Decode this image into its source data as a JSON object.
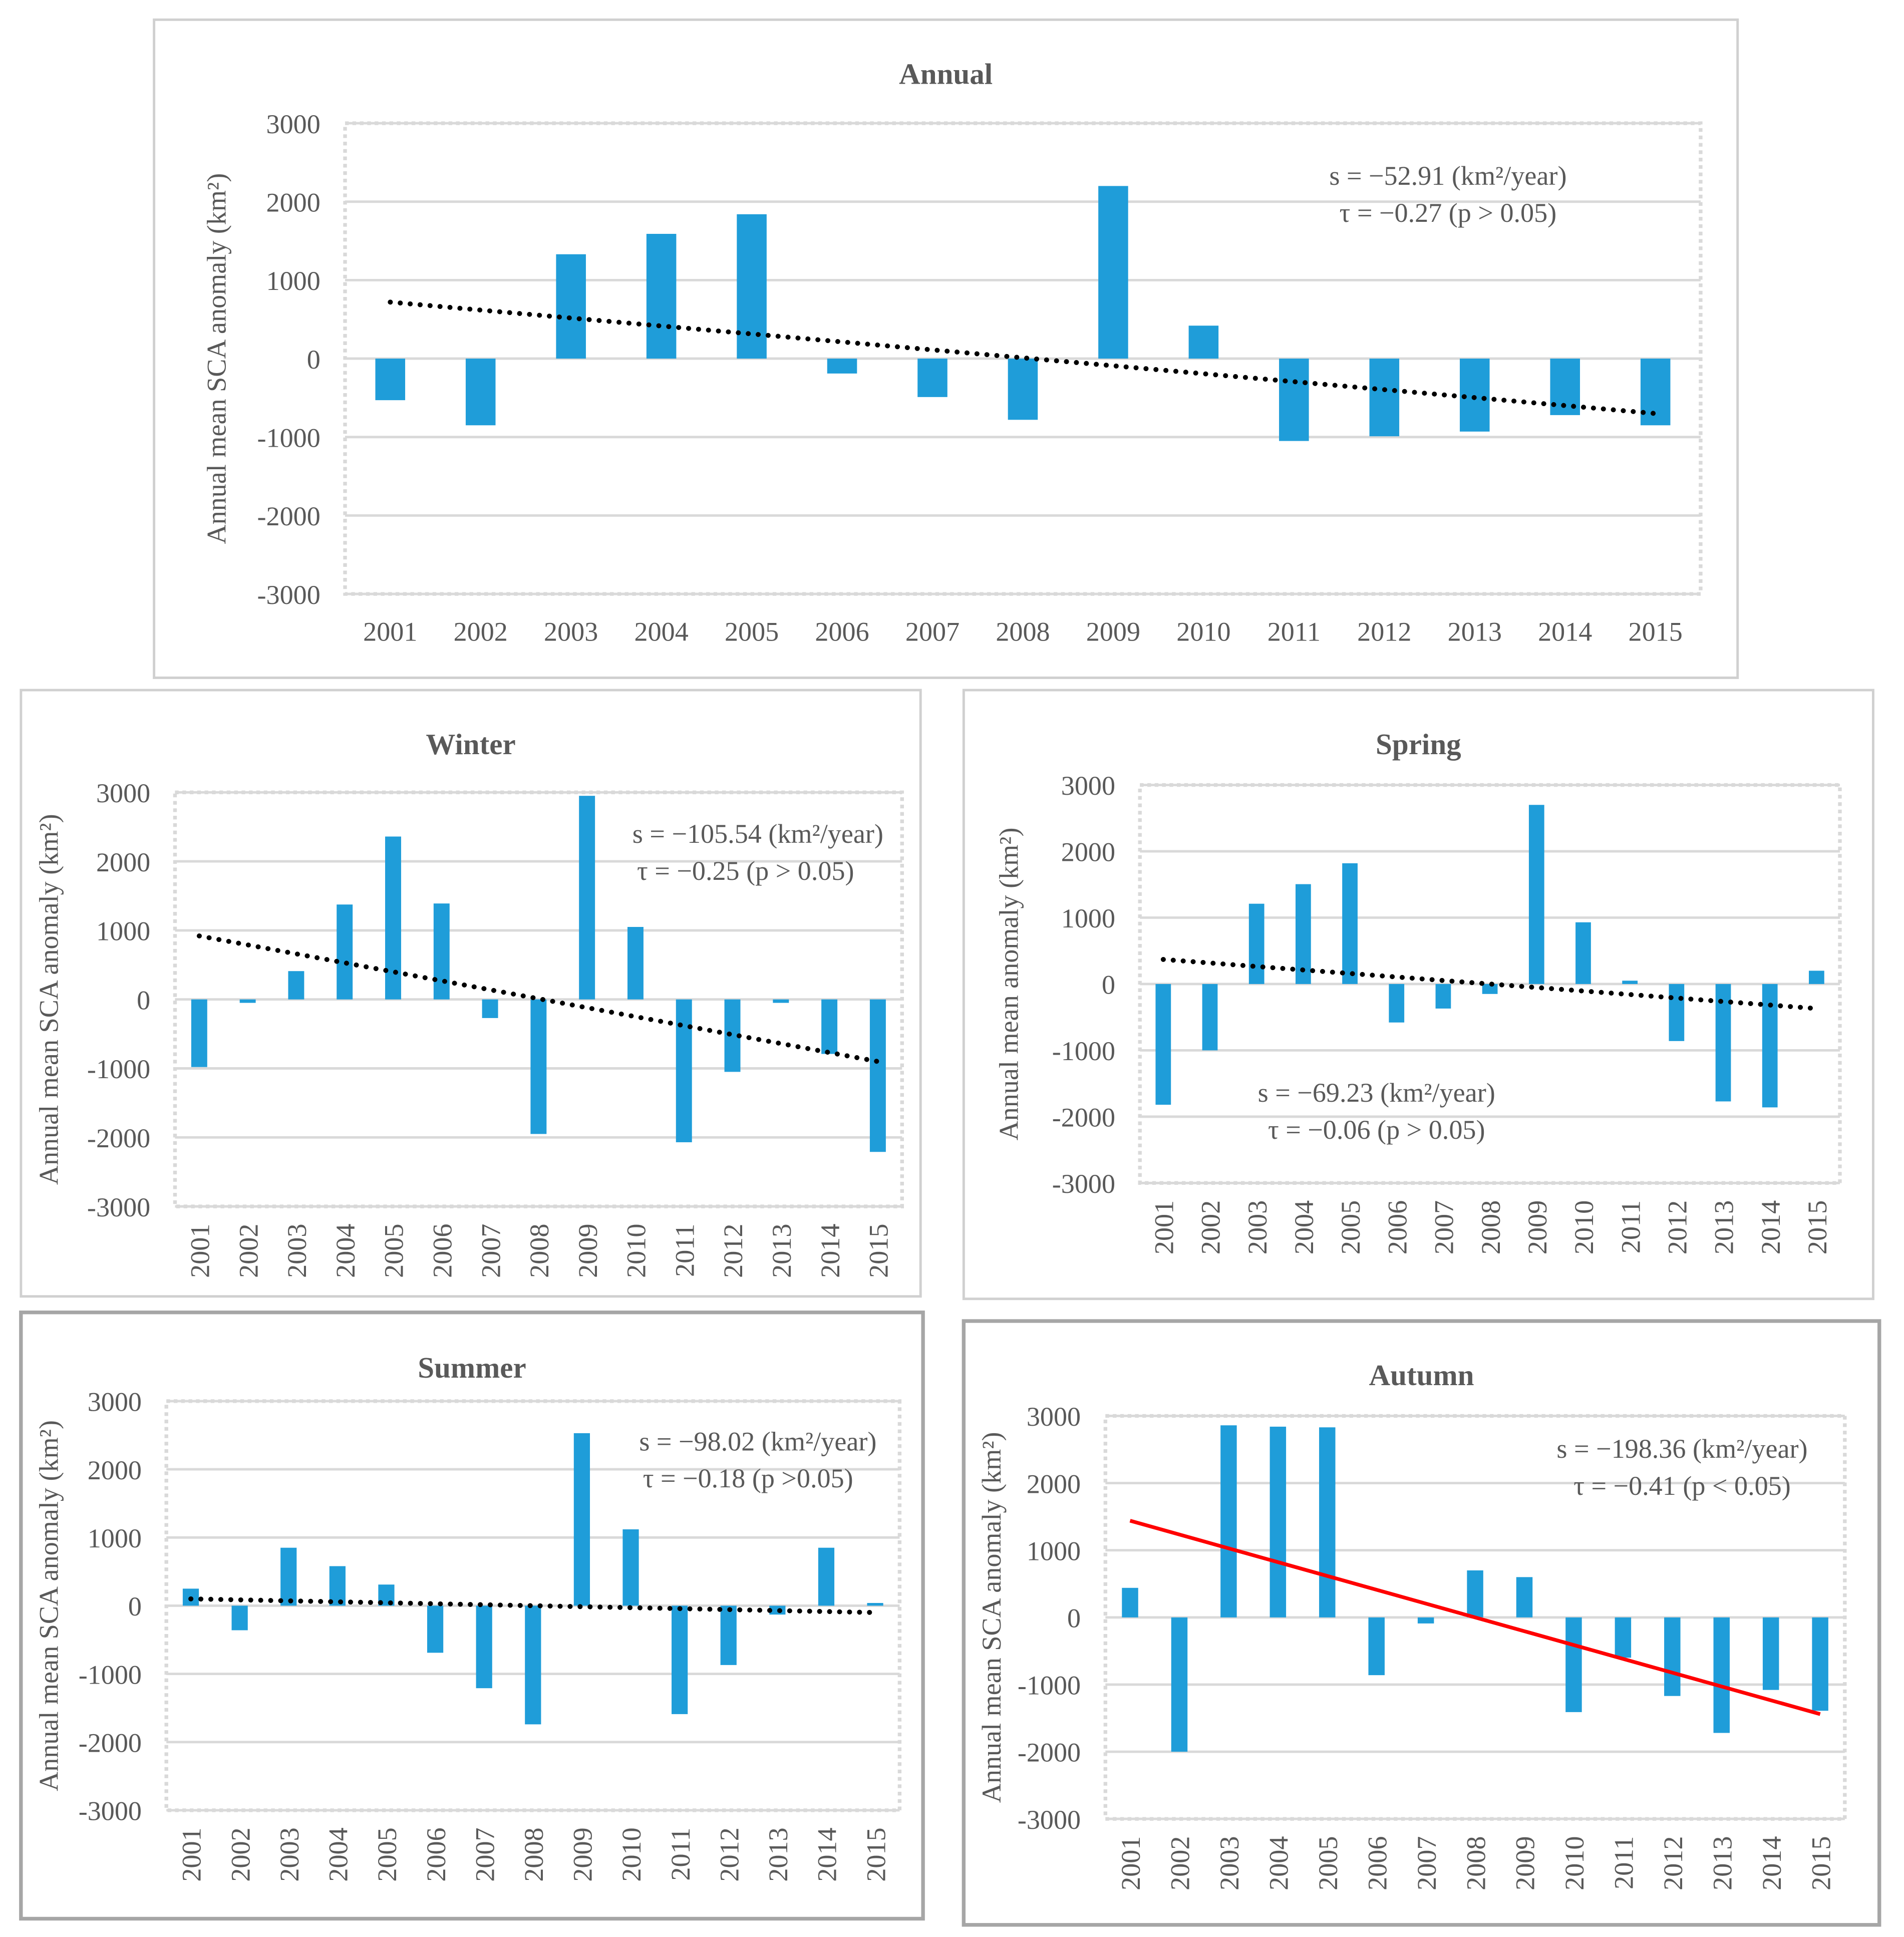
{
  "chart_data": [
    {
      "id": "annual",
      "type": "bar",
      "title": "Annual",
      "ylabel": "Annual mean SCA anomaly (km²)",
      "categories": [
        "2001",
        "2002",
        "2003",
        "2004",
        "2005",
        "2006",
        "2007",
        "2008",
        "2009",
        "2010",
        "2011",
        "2012",
        "2013",
        "2014",
        "2015"
      ],
      "values": [
        -530,
        -850,
        1330,
        1590,
        1840,
        -190,
        -490,
        -780,
        2200,
        420,
        -1050,
        -990,
        -930,
        -720,
        -850
      ],
      "ylim": [
        -3000,
        3000
      ],
      "yticks": [
        3000,
        2000,
        1000,
        0,
        -1000,
        -2000,
        -3000
      ],
      "trend": {
        "style": "dotted",
        "color": "#000000",
        "start": 720,
        "end": -700
      },
      "annotation": [
        "s = −52.91 (km²/year)",
        "τ = −0.27 (p > 0.05)"
      ]
    },
    {
      "id": "winter",
      "type": "bar",
      "title": "Winter",
      "ylabel": "Annual mean SCA anomaly (km²)",
      "categories": [
        "2001",
        "2002",
        "2003",
        "2004",
        "2005",
        "2006",
        "2007",
        "2008",
        "2009",
        "2010",
        "2011",
        "2012",
        "2013",
        "2014",
        "2015"
      ],
      "values": [
        -980,
        -50,
        410,
        1375,
        2360,
        1390,
        -270,
        -1950,
        2950,
        1050,
        -2070,
        -1050,
        -50,
        -790,
        -2210
      ],
      "ylim": [
        -3000,
        3000
      ],
      "yticks": [
        3000,
        2000,
        1000,
        0,
        -1000,
        -2000,
        -3000
      ],
      "trend": {
        "style": "dotted",
        "color": "#000000",
        "start": 920,
        "end": -900
      },
      "annotation": [
        "s = −105.54 (km²/year)",
        "τ = −0.25 (p > 0.05)"
      ]
    },
    {
      "id": "spring",
      "type": "bar",
      "title": "Spring",
      "ylabel": "Annual mean anomaly (km²)",
      "categories": [
        "2001",
        "2002",
        "2003",
        "2004",
        "2005",
        "2006",
        "2007",
        "2008",
        "2009",
        "2010",
        "2011",
        "2012",
        "2013",
        "2014",
        "2015"
      ],
      "values": [
        -1820,
        -1000,
        1210,
        1505,
        1820,
        -580,
        -370,
        -150,
        2700,
        930,
        50,
        -860,
        -1770,
        -1860,
        200
      ],
      "ylim": [
        -3000,
        3000
      ],
      "yticks": [
        3000,
        2000,
        1000,
        0,
        -1000,
        -2000,
        -3000
      ],
      "trend": {
        "style": "dotted",
        "color": "#000000",
        "start": 370,
        "end": -370
      },
      "annotation": [
        "s = −69.23 (km²/year)",
        "τ = −0.06 (p > 0.05)"
      ]
    },
    {
      "id": "summer",
      "type": "bar",
      "title": "Summer",
      "ylabel": "Annual mean SCA anomaly (km²)",
      "categories": [
        "2001",
        "2002",
        "2003",
        "2004",
        "2005",
        "2006",
        "2007",
        "2008",
        "2009",
        "2010",
        "2011",
        "2012",
        "2013",
        "2014",
        "2015"
      ],
      "values": [
        250,
        -360,
        850,
        580,
        310,
        -690,
        -1210,
        -1740,
        2530,
        1120,
        -1590,
        -870,
        -130,
        850,
        40
      ],
      "ylim": [
        -3000,
        3000
      ],
      "yticks": [
        3000,
        2000,
        1000,
        0,
        -1000,
        -2000,
        -3000
      ],
      "trend": {
        "style": "dotted",
        "color": "#000000",
        "start": 100,
        "end": -100
      },
      "annotation": [
        "s = −98.02 (km²/year)",
        "τ = −0.18 (p >0.05)"
      ]
    },
    {
      "id": "autumn",
      "type": "bar",
      "title": "Autumn",
      "ylabel": "Annual mean SCA anomaly (km²)",
      "categories": [
        "2001",
        "2002",
        "2003",
        "2004",
        "2005",
        "2006",
        "2007",
        "2008",
        "2009",
        "2010",
        "2011",
        "2012",
        "2013",
        "2014",
        "2015"
      ],
      "values": [
        440,
        -2000,
        2860,
        2840,
        2830,
        -860,
        -90,
        700,
        600,
        -1410,
        -600,
        -1170,
        -1720,
        -1080,
        -1390
      ],
      "ylim": [
        -3000,
        3000
      ],
      "yticks": [
        3000,
        2000,
        1000,
        0,
        -1000,
        -2000,
        -3000
      ],
      "trend": {
        "style": "solid",
        "color": "#ff0000",
        "start": 1440,
        "end": -1440
      },
      "annotation": [
        "s = −198.36 (km²/year)",
        "τ = −0.41 (p < 0.05)"
      ]
    }
  ],
  "colors": {
    "bar": "#1f9dd9",
    "grid": "#d9d9d9",
    "frame": "#d0d0d0"
  }
}
